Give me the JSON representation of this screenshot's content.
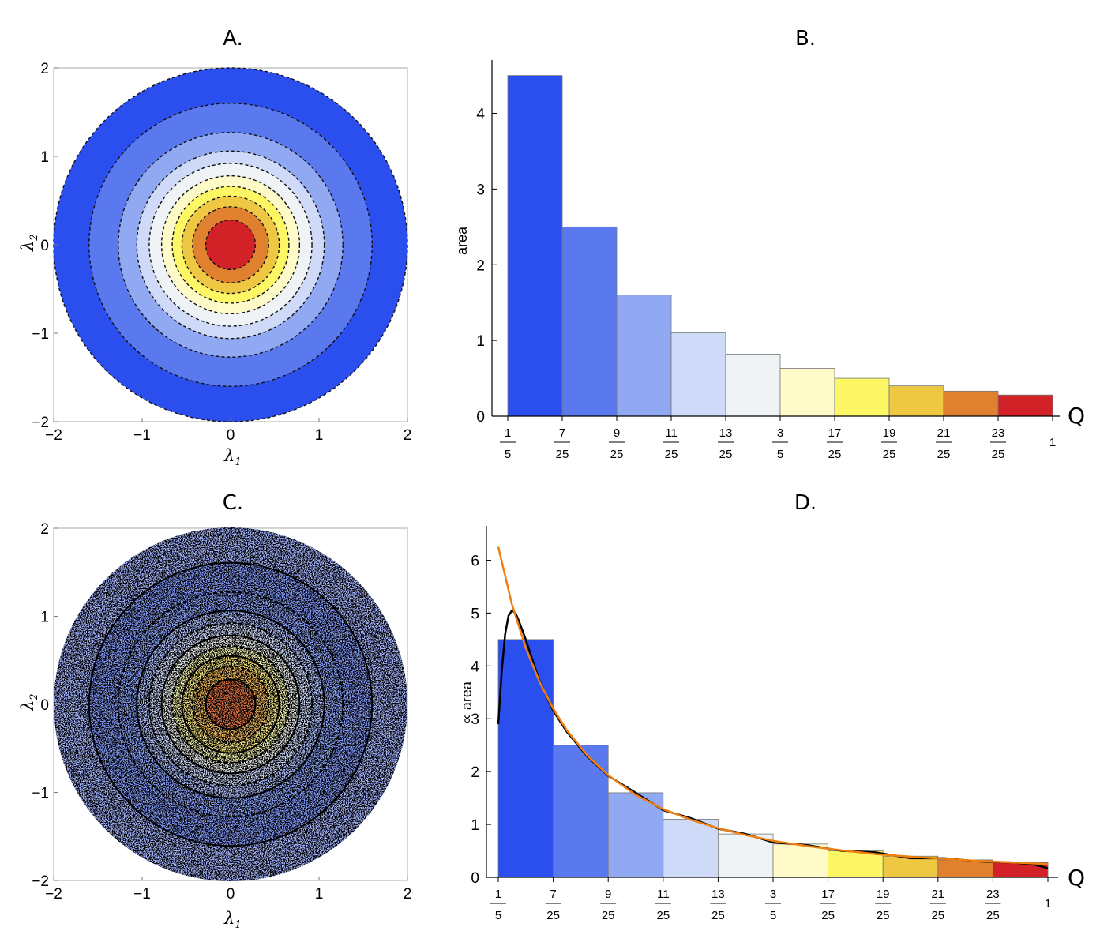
{
  "panels": {
    "A": {
      "title": "A."
    },
    "B": {
      "title": "B."
    },
    "C": {
      "title": "C."
    },
    "D": {
      "title": "D."
    }
  },
  "colors": {
    "levels": [
      "#2b4fef",
      "#5a79ef",
      "#91a8f3",
      "#cfd9f8",
      "#eff3f5",
      "#fefbc8",
      "#fdf765",
      "#eec843",
      "#e0812f",
      "#d22228"
    ],
    "fit_curve": "#f07f12",
    "empirical_curve": "#000000"
  },
  "chart_data": [
    {
      "panel": "A",
      "type": "heatmap",
      "xlabel": "λ",
      "xlabel_sub": "1",
      "ylabel": "λ",
      "ylabel_sub": "2",
      "xlim": [
        -2,
        2
      ],
      "ylim": [
        -2,
        2
      ],
      "xticks": [
        -2,
        -1,
        0,
        1,
        2
      ],
      "yticks": [
        -2,
        -1,
        0,
        1,
        2
      ],
      "xtick_labels": [
        "−2",
        "−1",
        "0",
        "1",
        "2"
      ],
      "ytick_labels": [
        "−2",
        "−1",
        "0",
        "1",
        "2"
      ],
      "contour_radii": [
        2.0,
        1.6,
        1.27,
        1.06,
        0.92,
        0.78,
        0.66,
        0.55,
        0.43,
        0.28
      ]
    },
    {
      "panel": "B",
      "type": "bar",
      "ylabel": "area",
      "xlabel": "Q",
      "ylim": [
        0,
        4.6
      ],
      "yticks": [
        0,
        1,
        2,
        3,
        4
      ],
      "bin_edges": [
        0.2,
        0.28,
        0.36,
        0.44,
        0.52,
        0.6,
        0.68,
        0.76,
        0.84,
        0.92,
        1.0
      ],
      "values": [
        4.5,
        2.5,
        1.6,
        1.1,
        0.82,
        0.63,
        0.5,
        0.4,
        0.33,
        0.28
      ],
      "xtick_labels": [
        {
          "num": "1",
          "den": "5"
        },
        {
          "num": "7",
          "den": "25"
        },
        {
          "num": "9",
          "den": "25"
        },
        {
          "num": "11",
          "den": "25"
        },
        {
          "num": "13",
          "den": "25"
        },
        {
          "num": "3",
          "den": "5"
        },
        {
          "num": "17",
          "den": "25"
        },
        {
          "num": "19",
          "den": "25"
        },
        {
          "num": "21",
          "den": "25"
        },
        {
          "num": "23",
          "den": "25"
        },
        {
          "num": "1",
          "den": ""
        }
      ]
    },
    {
      "panel": "C",
      "type": "scatter",
      "xlabel": "λ",
      "xlabel_sub": "1",
      "ylabel": "λ",
      "ylabel_sub": "2",
      "xlim": [
        -2,
        2
      ],
      "ylim": [
        -2,
        2
      ],
      "xticks": [
        -2,
        -1,
        0,
        1,
        2
      ],
      "yticks": [
        -2,
        -1,
        0,
        1,
        2
      ],
      "xtick_labels": [
        "−2",
        "−1",
        "0",
        "1",
        "2"
      ],
      "ytick_labels": [
        "−2",
        "−1",
        "0",
        "1",
        "2"
      ],
      "contour_radii": [
        2.0,
        1.6,
        1.27,
        1.06,
        0.92,
        0.78,
        0.66,
        0.55,
        0.43,
        0.28
      ]
    },
    {
      "panel": "D",
      "type": "bar",
      "ylabel": "∝ area",
      "xlabel": "Q",
      "ylim": [
        0,
        6.5
      ],
      "yticks": [
        0,
        1,
        2,
        3,
        4,
        5,
        6
      ],
      "bin_edges": [
        0.2,
        0.28,
        0.36,
        0.44,
        0.52,
        0.6,
        0.68,
        0.76,
        0.84,
        0.92,
        1.0
      ],
      "values": [
        4.5,
        2.5,
        1.6,
        1.1,
        0.82,
        0.63,
        0.5,
        0.4,
        0.33,
        0.28
      ],
      "xtick_labels": [
        {
          "num": "1",
          "den": "5"
        },
        {
          "num": "7",
          "den": "25"
        },
        {
          "num": "9",
          "den": "25"
        },
        {
          "num": "11",
          "den": "25"
        },
        {
          "num": "13",
          "den": "25"
        },
        {
          "num": "3",
          "den": "5"
        },
        {
          "num": "17",
          "den": "25"
        },
        {
          "num": "19",
          "den": "25"
        },
        {
          "num": "21",
          "den": "25"
        },
        {
          "num": "23",
          "den": "25"
        },
        {
          "num": "1",
          "den": ""
        }
      ],
      "fit_curve": {
        "x": [
          0.2,
          0.22,
          0.24,
          0.26,
          0.28,
          0.3,
          0.33,
          0.36,
          0.4,
          0.44,
          0.48,
          0.52,
          0.56,
          0.6,
          0.65,
          0.7,
          0.75,
          0.8,
          0.85,
          0.9,
          0.95,
          1.0
        ],
        "y": [
          6.25,
          5.16,
          4.34,
          3.7,
          3.19,
          2.78,
          2.3,
          1.93,
          1.56,
          1.29,
          1.09,
          0.93,
          0.8,
          0.69,
          0.59,
          0.51,
          0.44,
          0.39,
          0.35,
          0.31,
          0.28,
          0.25
        ]
      },
      "empirical_curve": {
        "x": [
          0.2,
          0.205,
          0.21,
          0.215,
          0.22,
          0.225,
          0.23,
          0.24,
          0.25,
          0.26,
          0.28,
          0.3,
          0.33,
          0.36,
          0.4,
          0.44,
          0.48,
          0.52,
          0.56,
          0.6,
          0.65,
          0.7,
          0.75,
          0.8,
          0.85,
          0.9,
          0.95,
          0.98,
          1.0
        ],
        "y": [
          2.9,
          3.9,
          4.6,
          4.95,
          5.05,
          5.0,
          4.85,
          4.5,
          4.1,
          3.72,
          3.15,
          2.75,
          2.28,
          1.92,
          1.6,
          1.27,
          1.12,
          0.92,
          0.82,
          0.66,
          0.61,
          0.5,
          0.47,
          0.36,
          0.36,
          0.3,
          0.28,
          0.24,
          0.17
        ]
      }
    }
  ]
}
